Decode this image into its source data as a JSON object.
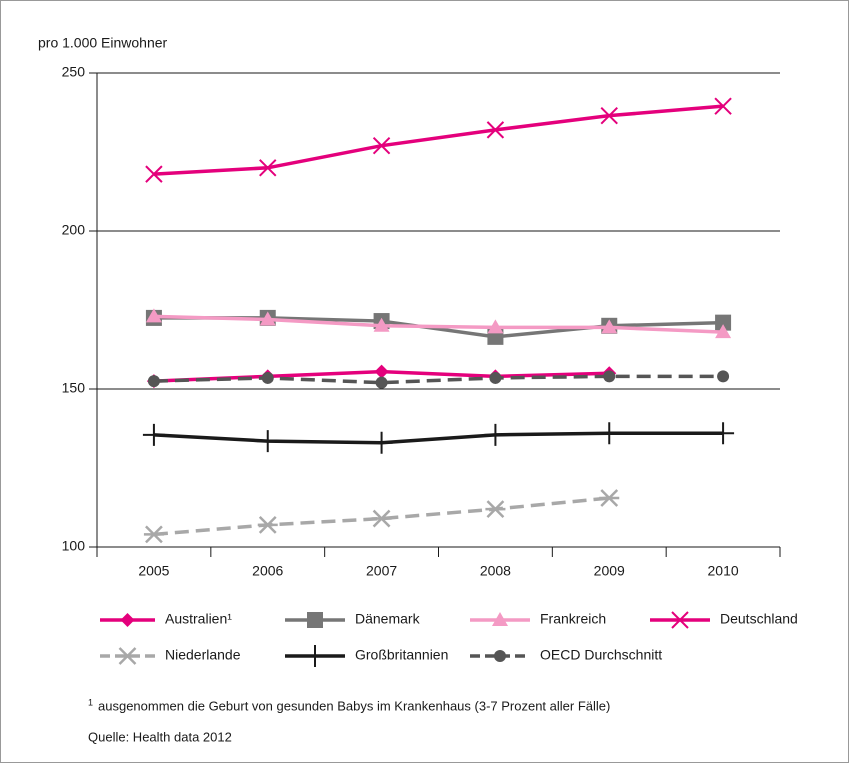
{
  "chart_data": {
    "type": "line",
    "y_label": "pro 1.000 Einwohner",
    "categories": [
      "2005",
      "2006",
      "2007",
      "2008",
      "2009",
      "2010"
    ],
    "series": [
      {
        "name": "Australien¹",
        "color": "#e4007c",
        "marker": "diamond",
        "dash": false,
        "values": [
          152.5,
          154,
          155.5,
          154,
          155,
          null
        ]
      },
      {
        "name": "Dänemark",
        "color": "#767676",
        "marker": "square",
        "dash": false,
        "values": [
          172.5,
          172.5,
          171.5,
          166.5,
          170,
          171
        ]
      },
      {
        "name": "Frankreich",
        "color": "#f49ac4",
        "marker": "triangle",
        "dash": false,
        "values": [
          173,
          172,
          170,
          169.5,
          169.5,
          168
        ]
      },
      {
        "name": "Deutschland",
        "color": "#e4007c",
        "marker": "x",
        "dash": false,
        "values": [
          218,
          220,
          227,
          232,
          236.5,
          239.5
        ]
      },
      {
        "name": "Niederlande",
        "color": "#a8a8a8",
        "marker": "asterisk",
        "dash": true,
        "values": [
          104,
          107,
          109,
          112,
          115.5,
          null
        ]
      },
      {
        "name": "Großbritannien",
        "color": "#1a1a1a",
        "marker": "plus",
        "dash": false,
        "values": [
          135.5,
          133.5,
          133,
          135.5,
          136,
          136
        ]
      },
      {
        "name": "OECD  Durchschnitt",
        "color": "#555555",
        "marker": "circle",
        "dash": true,
        "values": [
          152.5,
          153.5,
          152,
          153.5,
          154,
          154
        ]
      }
    ],
    "ylim": [
      100,
      250
    ],
    "yticks": [
      100,
      150,
      200,
      250
    ],
    "grid": true,
    "footnote": {
      "marker": "1",
      "text": "ausgenommen die Geburt von gesunden Babys im Krankenhaus (3-7 Prozent aller Fälle)"
    },
    "source": "Quelle: Health data 2012"
  }
}
